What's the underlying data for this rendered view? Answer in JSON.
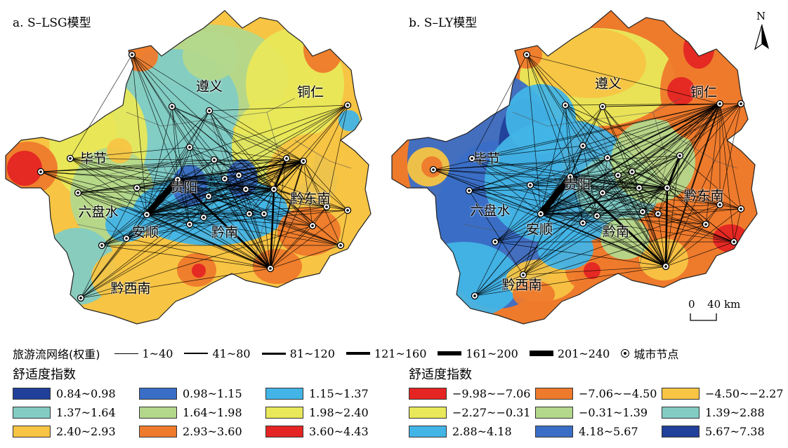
{
  "panels": [
    {
      "title": "a. S–LSG模型",
      "city_labels": {
        "zunyi": "遵义",
        "tongren": "铜仁",
        "bijie": "毕节",
        "guiyang": "贵阳",
        "liupanshui": "六盘水",
        "anshun": "安顺",
        "qiannan": "黔南",
        "qiandongnan": "黔东南",
        "qianxinan": "黔西南"
      },
      "palette": [
        "#21409a",
        "#3a6ec6",
        "#42b4e6",
        "#82ccc4",
        "#b3d88c",
        "#e8e85a",
        "#f7c443",
        "#ee7a2c",
        "#e42523"
      ]
    },
    {
      "title": "b. S–LY模型",
      "city_labels": {
        "zunyi": "遵义",
        "tongren": "铜仁",
        "bijie": "毕节",
        "guiyang": "贵阳",
        "liupanshui": "六盘水",
        "anshun": "安顺",
        "qiannan": "黔南",
        "qiandongnan": "黔东南",
        "qianxinan": "黔西南"
      },
      "palette": [
        "#e42523",
        "#ee7a2c",
        "#f7c443",
        "#e8e85a",
        "#b3d88c",
        "#82ccc4",
        "#42b4e6",
        "#3a6ec6",
        "#21409a"
      ]
    }
  ],
  "compass": {
    "letter": "N"
  },
  "scale_bar": {
    "zero": "0",
    "value": "40 km"
  },
  "flow_legend": {
    "title": "旅游流网络(权重)",
    "items": [
      {
        "label": "1~40",
        "weight": 1
      },
      {
        "label": "41~80",
        "weight": 2
      },
      {
        "label": "81~120",
        "weight": 3
      },
      {
        "label": "121~160",
        "weight": 4
      },
      {
        "label": "161~200",
        "weight": 6
      },
      {
        "label": "201~240",
        "weight": 8
      }
    ],
    "node_label": "城市节点"
  },
  "comfort_legend_a": {
    "title": "舒适度指数",
    "items": [
      {
        "label": "0.84~0.98",
        "color": "#21409a"
      },
      {
        "label": "0.98~1.15",
        "color": "#3a6ec6"
      },
      {
        "label": "1.15~1.37",
        "color": "#42b4e6"
      },
      {
        "label": "1.37~1.64",
        "color": "#82ccc4"
      },
      {
        "label": "1.64~1.98",
        "color": "#b3d88c"
      },
      {
        "label": "1.98~2.40",
        "color": "#e8e85a"
      },
      {
        "label": "2.40~2.93",
        "color": "#f7c443"
      },
      {
        "label": "2.93~3.60",
        "color": "#ee7a2c"
      },
      {
        "label": "3.60~4.43",
        "color": "#e42523"
      }
    ]
  },
  "comfort_legend_b": {
    "title": "舒适度指数",
    "items": [
      {
        "label": "−9.98~−7.06",
        "color": "#e42523"
      },
      {
        "label": "−7.06~−4.50",
        "color": "#ee7a2c"
      },
      {
        "label": "−4.50~−2.27",
        "color": "#f7c443"
      },
      {
        "label": "−2.27~−0.31",
        "color": "#e8e85a"
      },
      {
        "label": "−0.31~1.39",
        "color": "#b3d88c"
      },
      {
        "label": "1.39~2.88",
        "color": "#82ccc4"
      },
      {
        "label": "2.88~4.18",
        "color": "#42b4e6"
      },
      {
        "label": "4.18~5.67",
        "color": "#3a6ec6"
      },
      {
        "label": "5.67~7.38",
        "color": "#21409a"
      }
    ]
  }
}
